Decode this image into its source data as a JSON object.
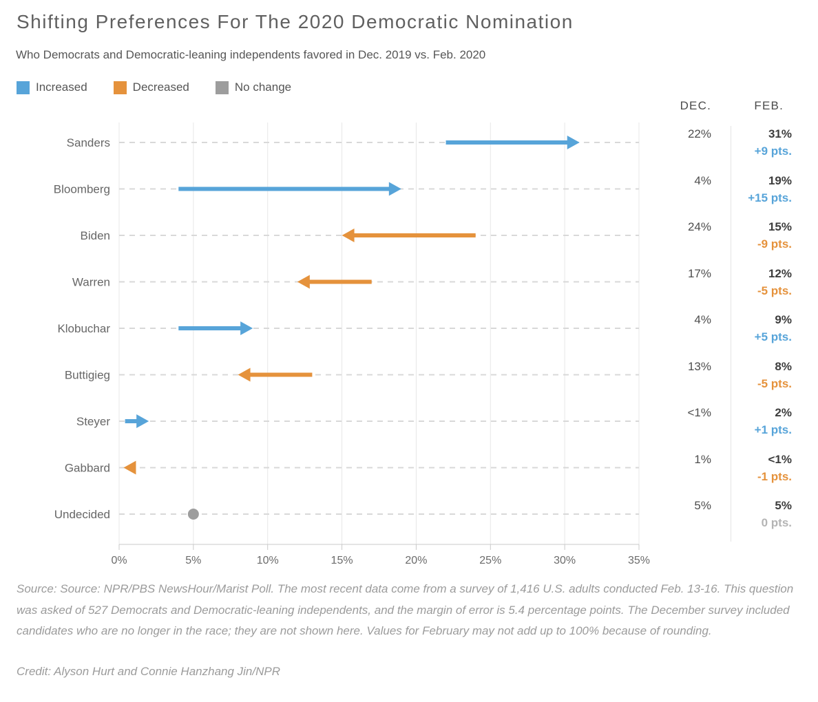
{
  "chart_data": {
    "type": "scatter",
    "variant": "arrow-change (dumbbell chart with directional arrows per category)",
    "title": "Shifting Preferences For The 2020 Democratic Nomination",
    "subtitle": "Who Democrats and Democratic-leaning independents favored in Dec. 2019 vs. Feb. 2020",
    "legend": [
      {
        "label": "Increased",
        "key": "increased",
        "color": "#57a4d9"
      },
      {
        "label": "Decreased",
        "key": "decreased",
        "color": "#e5923c"
      },
      {
        "label": "No change",
        "key": "nochange",
        "color": "#9d9d9d"
      }
    ],
    "legend_position": "top-left",
    "columns": {
      "dec": "DEC.",
      "feb": "FEB."
    },
    "x_axis": {
      "ticks": [
        "0%",
        "5%",
        "10%",
        "15%",
        "20%",
        "25%",
        "30%",
        "35%"
      ],
      "tick_values": [
        0,
        5,
        10,
        15,
        20,
        25,
        30,
        35
      ],
      "lim": [
        0,
        35
      ],
      "unit": "%"
    },
    "grid": {
      "vertical": "solid",
      "horizontal": "dashed per category row"
    },
    "categories": [
      "Sanders",
      "Bloomberg",
      "Biden",
      "Warren",
      "Klobuchar",
      "Buttigieg",
      "Steyer",
      "Gabbard",
      "Undecided"
    ],
    "series": [
      {
        "name": "DEC.",
        "values": [
          22,
          4,
          24,
          17,
          4,
          13,
          0.4,
          1,
          5
        ]
      },
      {
        "name": "FEB.",
        "values": [
          31,
          19,
          15,
          12,
          9,
          8,
          2,
          0.3,
          5
        ]
      }
    ],
    "rows": [
      {
        "candidate": "Sanders",
        "dec_label": "22%",
        "feb_label": "31%",
        "change_label": "+9 pts.",
        "direction": "increased",
        "dec": 22,
        "feb": 31
      },
      {
        "candidate": "Bloomberg",
        "dec_label": "4%",
        "feb_label": "19%",
        "change_label": "+15 pts.",
        "direction": "increased",
        "dec": 4,
        "feb": 19
      },
      {
        "candidate": "Biden",
        "dec_label": "24%",
        "feb_label": "15%",
        "change_label": "-9 pts.",
        "direction": "decreased",
        "dec": 24,
        "feb": 15
      },
      {
        "candidate": "Warren",
        "dec_label": "17%",
        "feb_label": "12%",
        "change_label": "-5 pts.",
        "direction": "decreased",
        "dec": 17,
        "feb": 12
      },
      {
        "candidate": "Klobuchar",
        "dec_label": "4%",
        "feb_label": "9%",
        "change_label": "+5 pts.",
        "direction": "increased",
        "dec": 4,
        "feb": 9
      },
      {
        "candidate": "Buttigieg",
        "dec_label": "13%",
        "feb_label": "8%",
        "change_label": "-5 pts.",
        "direction": "decreased",
        "dec": 13,
        "feb": 8
      },
      {
        "candidate": "Steyer",
        "dec_label": "<1%",
        "feb_label": "2%",
        "change_label": "+1 pts.",
        "direction": "increased",
        "dec": 0.4,
        "feb": 2
      },
      {
        "candidate": "Gabbard",
        "dec_label": "1%",
        "feb_label": "<1%",
        "change_label": "-1 pts.",
        "direction": "decreased",
        "dec": 1,
        "feb": 0.3
      },
      {
        "candidate": "Undecided",
        "dec_label": "5%",
        "feb_label": "5%",
        "change_label": "0 pts.",
        "direction": "nochange",
        "dec": 5,
        "feb": 5
      }
    ],
    "style_colors": {
      "grid_vertical": "#e7e7e7",
      "grid_dashed": "#d8d8d8",
      "axis_line": "#c9c9c9",
      "axis_label": "#6b6b6b",
      "category_label": "#666666"
    }
  },
  "footer": {
    "source": "Source: Source: NPR/PBS NewsHour/Marist Poll. The most recent data come from a survey of 1,416 U.S. adults conducted Feb. 13-16. This question was asked of 527 Democrats and Democratic-leaning independents, and the margin of error is 5.4 percentage points. The December survey included candidates who are no longer in the race; they are not shown here. Values for February may not add up to 100% because of rounding.",
    "credit": "Credit: Alyson Hurt and Connie Hanzhang Jin/NPR"
  }
}
